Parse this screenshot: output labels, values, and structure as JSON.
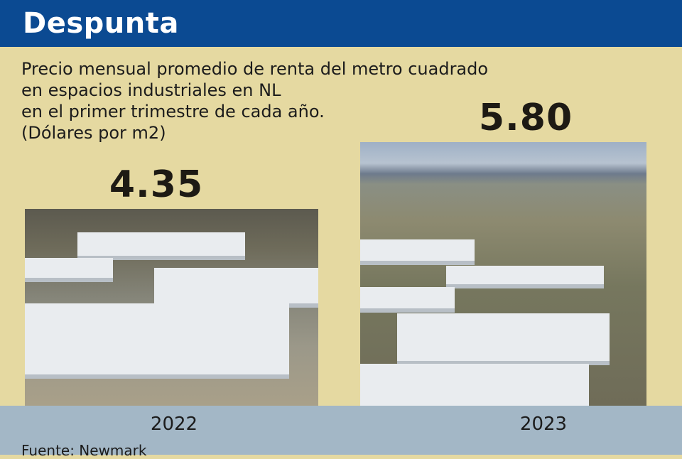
{
  "header": {
    "title": "Despunta"
  },
  "subtitle": {
    "lines": [
      "Precio mensual promedio de renta del metro cuadrado",
      "en espacios industriales en NL",
      "en el primer trimestre de cada año.",
      "(Dólares por m2)"
    ]
  },
  "source": "Fuente: Newmark",
  "colors": {
    "header": "#0b4a92",
    "background": "#e5d9a1",
    "footer": "#a3b7c6"
  },
  "chart_data": {
    "type": "bar",
    "title": "Despunta",
    "subtitle": "Precio mensual promedio de renta del metro cuadrado en espacios industriales en NL en el primer trimestre de cada año. (Dólares por m2)",
    "categories": [
      "2022",
      "2023"
    ],
    "values": [
      4.35,
      5.8
    ],
    "value_labels": [
      "4.35",
      "5.80"
    ],
    "bar_style": "aerial photos of industrial parks as bars",
    "ylabel": "",
    "xlabel": ""
  }
}
